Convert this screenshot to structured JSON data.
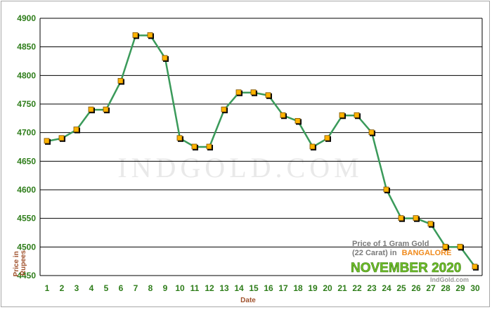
{
  "chart_data": {
    "type": "line",
    "xlabel": "Date",
    "ylabel": "Price in Rupees",
    "ylim": [
      4450,
      4900
    ],
    "yticks": [
      4450,
      4500,
      4550,
      4600,
      4650,
      4700,
      4750,
      4800,
      4850,
      4900
    ],
    "x": [
      1,
      2,
      3,
      4,
      5,
      6,
      7,
      8,
      9,
      10,
      11,
      12,
      13,
      14,
      15,
      16,
      17,
      18,
      19,
      20,
      21,
      22,
      23,
      24,
      25,
      26,
      27,
      28,
      29,
      30
    ],
    "series": [
      {
        "values": [
          4685,
          4690,
          4705,
          4740,
          4740,
          4790,
          4870,
          4870,
          4830,
          4690,
          4675,
          4675,
          4740,
          4770,
          4770,
          4765,
          4730,
          4720,
          4675,
          4690,
          4730,
          4730,
          4700,
          4600,
          4550,
          4550,
          4540,
          4500,
          4500,
          4465
        ]
      }
    ],
    "grid": "horizontal",
    "line_color": "#3a9a5a",
    "marker_color": "#ffb300",
    "watermark": "INDGOLD.COM",
    "caption": {
      "line1": "Price of 1 Gram Gold",
      "line2_prefix": "(22 Carat) in",
      "city": "BANGALORE",
      "month": "NOVEMBER 2020",
      "site": "IndGold.com"
    }
  }
}
